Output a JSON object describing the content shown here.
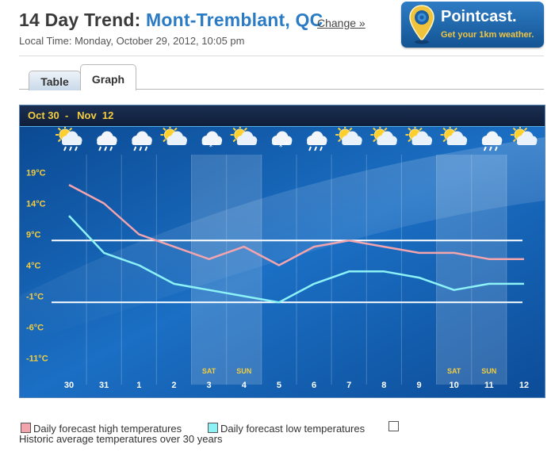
{
  "header": {
    "title_prefix": "14 Day Trend:",
    "location": "Mont-Tremblant, QC",
    "change_link": "Change »",
    "local_time": "Local Time: Monday, October 29, 2012, 10:05 pm"
  },
  "promo": {
    "title": "Pointcast.",
    "subtitle": "Get your 1km weather."
  },
  "tabs": [
    {
      "label": "Table",
      "active": false
    },
    {
      "label": "Graph",
      "active": true
    }
  ],
  "colors": {
    "high": "#f4a4ad",
    "low": "#8cf2f6",
    "historic": "#ffffff",
    "accent": "#2b7bc5",
    "date_text": "#f3cd3f"
  },
  "chart_data": {
    "type": "line",
    "date_range": "Oct 30  -   Nov  12",
    "categories": [
      "30",
      "31",
      "1",
      "2",
      "3",
      "4",
      "5",
      "6",
      "7",
      "8",
      "9",
      "10",
      "11",
      "12"
    ],
    "weekend_labels": [
      "",
      "",
      "",
      "",
      "SAT",
      "SUN",
      "",
      "",
      "",
      "",
      "",
      "SAT",
      "SUN",
      ""
    ],
    "weekend_shaded": [
      false,
      false,
      false,
      false,
      true,
      true,
      false,
      false,
      false,
      false,
      false,
      true,
      true,
      false
    ],
    "icons": [
      "sun-cloud-rain-icon",
      "rain-cloud-icon",
      "rain-cloud-icon",
      "sun-cloud-icon",
      "snow-cloud-icon",
      "sun-cloud-icon",
      "snow-cloud-icon",
      "rain-cloud-icon",
      "sun-cloud-icon",
      "sun-cloud-icon",
      "sun-cloud-icon",
      "sun-cloud-icon",
      "rain-cloud-icon",
      "sun-cloud-icon"
    ],
    "y_ticks": [
      19,
      14,
      9,
      4,
      -1,
      -6,
      -11
    ],
    "y_tick_labels": [
      "19°C",
      "14°C",
      "9°C",
      "4°C",
      "-1°C",
      "-6°C",
      "-11°C"
    ],
    "ylim": [
      -15.5,
      22
    ],
    "series": [
      {
        "name": "Daily forecast high temperatures",
        "values": [
          17,
          14,
          9,
          7,
          5,
          7,
          4,
          7,
          8,
          7,
          6,
          6,
          5,
          5
        ]
      },
      {
        "name": "Daily forecast low temperatures",
        "values": [
          12,
          6,
          4,
          1,
          0,
          -1,
          -2,
          1,
          3,
          3,
          2,
          0,
          1,
          1
        ]
      }
    ],
    "historic_average": {
      "name": "Historic average temperatures over 30 years",
      "high": 8,
      "low": -2
    }
  }
}
